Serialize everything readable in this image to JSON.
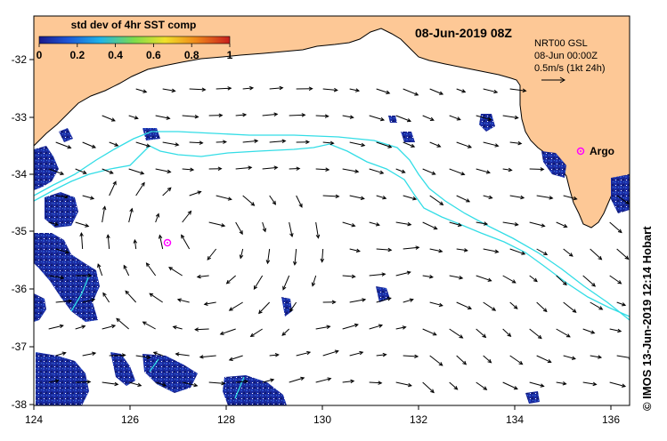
{
  "title": "08-Jun-2019 08Z",
  "colorbar": {
    "label": "std dev of 4hr SST comp",
    "ticks": [
      "0",
      "0.2",
      "0.4",
      "0.6",
      "0.8",
      "1"
    ],
    "colors": [
      "#1a1a8c",
      "#1e56d6",
      "#1fb4e8",
      "#7fdc4a",
      "#f0e02a",
      "#f08a1a",
      "#c81e1e"
    ]
  },
  "info": {
    "line1": "NRT00 GSL",
    "line2": "08-Jun 00:00Z",
    "line3": "0.5m/s (1kt 24h)"
  },
  "argo_label": "Argo",
  "credit": "© IMOS 13-Jun-2019 12:14 Hobart",
  "axes": {
    "x_ticks": [
      "124",
      "126",
      "128",
      "130",
      "132",
      "134",
      "136"
    ],
    "y_ticks": [
      "-32",
      "-33",
      "-34",
      "-35",
      "-36",
      "-37",
      "-38"
    ]
  },
  "colors": {
    "land": "#fdc896",
    "ocean": "#ffffff",
    "track": "#33dde6",
    "argo": "#ff00ff",
    "sst_noise": "#1a2a9e"
  }
}
